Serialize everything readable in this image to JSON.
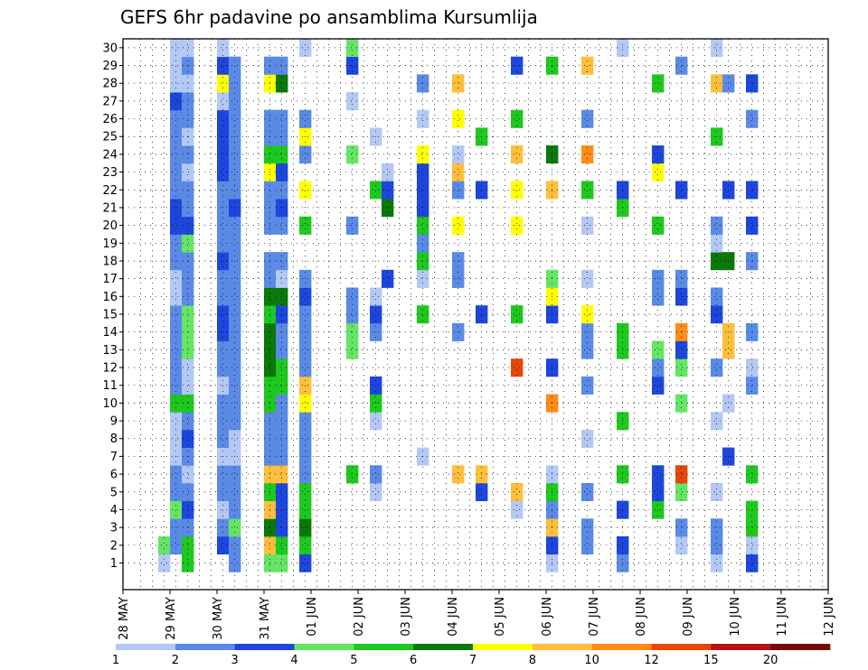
{
  "chart_data": {
    "type": "heatmap",
    "title": "GEFS 6hr padavine po ansamblima Kursumlija",
    "xlabel": "",
    "ylabel": "",
    "x_ticks": [
      "28 MAY",
      "29 MAY",
      "30 MAY",
      "31 MAY",
      "01 JUN",
      "02 JUN",
      "03 JUN",
      "04 JUN",
      "05 JUN",
      "06 JUN",
      "07 JUN",
      "08 JUN",
      "09 JUN",
      "10 JUN",
      "11 JUN",
      "12 JUN"
    ],
    "y_ticks": [
      1,
      2,
      3,
      4,
      5,
      6,
      7,
      8,
      9,
      10,
      11,
      12,
      13,
      14,
      15,
      16,
      17,
      18,
      19,
      20,
      21,
      22,
      23,
      24,
      25,
      26,
      27,
      28,
      29,
      30
    ],
    "xlim": [
      "28 MAY",
      "12 JUN"
    ],
    "ylim": [
      0,
      30
    ],
    "grid": true,
    "x_step": "6hr",
    "levels": [
      1,
      2,
      3,
      4,
      5,
      6,
      7,
      8,
      10,
      12,
      15,
      20
    ],
    "level_labels": [
      "1",
      "2",
      "3",
      "4",
      "5",
      "6",
      "7",
      "8",
      "10",
      "12",
      "15",
      "20"
    ],
    "colors": [
      "#b4c8f5",
      "#5a8ae6",
      "#1e46dc",
      "#64e664",
      "#1ec81e",
      "#0a780a",
      "#ffff00",
      "#ffbe3c",
      "#ff8c14",
      "#e6460a",
      "#b41414",
      "#780a0a"
    ],
    "cells": [
      [
        3,
        1,
        1
      ],
      [
        3,
        2,
        4
      ],
      [
        4,
        2,
        2
      ],
      [
        4,
        3,
        2
      ],
      [
        4,
        4,
        4
      ],
      [
        4,
        5,
        2
      ],
      [
        4,
        6,
        2
      ],
      [
        4,
        7,
        1
      ],
      [
        4,
        8,
        1
      ],
      [
        4,
        9,
        1
      ],
      [
        4,
        10,
        5
      ],
      [
        4,
        11,
        2
      ],
      [
        4,
        12,
        2
      ],
      [
        4,
        13,
        2
      ],
      [
        4,
        14,
        2
      ],
      [
        4,
        15,
        2
      ],
      [
        4,
        16,
        1
      ],
      [
        4,
        17,
        1
      ],
      [
        4,
        18,
        2
      ],
      [
        4,
        19,
        2
      ],
      [
        4,
        20,
        3
      ],
      [
        4,
        21,
        3
      ],
      [
        4,
        22,
        2
      ],
      [
        4,
        23,
        2
      ],
      [
        4,
        24,
        2
      ],
      [
        4,
        25,
        2
      ],
      [
        4,
        26,
        2
      ],
      [
        4,
        27,
        3
      ],
      [
        4,
        28,
        1
      ],
      [
        4,
        29,
        1
      ],
      [
        4,
        30,
        1
      ],
      [
        5,
        1,
        5
      ],
      [
        5,
        2,
        5
      ],
      [
        5,
        3,
        2
      ],
      [
        5,
        4,
        3
      ],
      [
        5,
        5,
        2
      ],
      [
        5,
        6,
        1
      ],
      [
        5,
        7,
        2
      ],
      [
        5,
        8,
        3
      ],
      [
        5,
        9,
        2
      ],
      [
        5,
        10,
        5
      ],
      [
        5,
        11,
        1
      ],
      [
        5,
        12,
        1
      ],
      [
        5,
        13,
        4
      ],
      [
        5,
        14,
        4
      ],
      [
        5,
        15,
        4
      ],
      [
        5,
        16,
        2
      ],
      [
        5,
        17,
        2
      ],
      [
        5,
        18,
        2
      ],
      [
        5,
        19,
        4
      ],
      [
        5,
        20,
        3
      ],
      [
        5,
        21,
        2
      ],
      [
        5,
        22,
        2
      ],
      [
        5,
        23,
        1
      ],
      [
        5,
        24,
        2
      ],
      [
        5,
        25,
        1
      ],
      [
        5,
        26,
        2
      ],
      [
        5,
        27,
        2
      ],
      [
        5,
        28,
        1
      ],
      [
        5,
        29,
        2
      ],
      [
        5,
        30,
        1
      ],
      [
        8,
        2,
        3
      ],
      [
        8,
        3,
        2
      ],
      [
        8,
        4,
        1
      ],
      [
        8,
        5,
        2
      ],
      [
        8,
        6,
        2
      ],
      [
        8,
        7,
        1
      ],
      [
        8,
        8,
        2
      ],
      [
        8,
        9,
        2
      ],
      [
        8,
        10,
        2
      ],
      [
        8,
        11,
        1
      ],
      [
        8,
        12,
        2
      ],
      [
        8,
        13,
        2
      ],
      [
        8,
        14,
        3
      ],
      [
        8,
        15,
        3
      ],
      [
        8,
        16,
        2
      ],
      [
        8,
        17,
        2
      ],
      [
        8,
        18,
        3
      ],
      [
        8,
        19,
        2
      ],
      [
        8,
        20,
        2
      ],
      [
        8,
        21,
        2
      ],
      [
        8,
        22,
        2
      ],
      [
        8,
        23,
        3
      ],
      [
        8,
        24,
        3
      ],
      [
        8,
        25,
        3
      ],
      [
        8,
        26,
        3
      ],
      [
        8,
        27,
        1
      ],
      [
        8,
        28,
        7
      ],
      [
        8,
        29,
        3
      ],
      [
        8,
        30,
        1
      ],
      [
        9,
        1,
        2
      ],
      [
        9,
        2,
        2
      ],
      [
        9,
        3,
        4
      ],
      [
        9,
        4,
        2
      ],
      [
        9,
        5,
        2
      ],
      [
        9,
        6,
        2
      ],
      [
        9,
        7,
        1
      ],
      [
        9,
        8,
        1
      ],
      [
        9,
        9,
        2
      ],
      [
        9,
        10,
        2
      ],
      [
        9,
        11,
        2
      ],
      [
        9,
        12,
        2
      ],
      [
        9,
        13,
        2
      ],
      [
        9,
        14,
        2
      ],
      [
        9,
        15,
        2
      ],
      [
        9,
        16,
        2
      ],
      [
        9,
        17,
        2
      ],
      [
        9,
        18,
        2
      ],
      [
        9,
        19,
        2
      ],
      [
        9,
        20,
        2
      ],
      [
        9,
        21,
        3
      ],
      [
        9,
        22,
        2
      ],
      [
        9,
        23,
        2
      ],
      [
        9,
        24,
        2
      ],
      [
        9,
        25,
        2
      ],
      [
        9,
        26,
        2
      ],
      [
        9,
        27,
        2
      ],
      [
        9,
        28,
        2
      ],
      [
        9,
        29,
        2
      ],
      [
        12,
        1,
        4
      ],
      [
        12,
        2,
        8
      ],
      [
        12,
        3,
        6
      ],
      [
        12,
        4,
        8
      ],
      [
        12,
        5,
        5
      ],
      [
        12,
        6,
        8
      ],
      [
        12,
        7,
        2
      ],
      [
        12,
        8,
        2
      ],
      [
        12,
        9,
        2
      ],
      [
        12,
        10,
        5
      ],
      [
        12,
        11,
        5
      ],
      [
        12,
        12,
        6
      ],
      [
        12,
        13,
        6
      ],
      [
        12,
        14,
        6
      ],
      [
        12,
        15,
        5
      ],
      [
        12,
        16,
        6
      ],
      [
        12,
        17,
        2
      ],
      [
        12,
        18,
        2
      ],
      [
        12,
        20,
        2
      ],
      [
        12,
        21,
        2
      ],
      [
        12,
        22,
        2
      ],
      [
        12,
        23,
        7
      ],
      [
        12,
        24,
        5
      ],
      [
        12,
        25,
        2
      ],
      [
        12,
        26,
        2
      ],
      [
        12,
        28,
        7
      ],
      [
        12,
        29,
        2
      ],
      [
        13,
        1,
        4
      ],
      [
        13,
        2,
        5
      ],
      [
        13,
        3,
        3
      ],
      [
        13,
        4,
        3
      ],
      [
        13,
        5,
        3
      ],
      [
        13,
        6,
        8
      ],
      [
        13,
        7,
        2
      ],
      [
        13,
        8,
        2
      ],
      [
        13,
        9,
        2
      ],
      [
        13,
        10,
        2
      ],
      [
        13,
        11,
        5
      ],
      [
        13,
        12,
        5
      ],
      [
        13,
        13,
        2
      ],
      [
        13,
        14,
        2
      ],
      [
        13,
        15,
        3
      ],
      [
        13,
        16,
        6
      ],
      [
        13,
        17,
        1
      ],
      [
        13,
        18,
        2
      ],
      [
        13,
        20,
        2
      ],
      [
        13,
        21,
        3
      ],
      [
        13,
        22,
        2
      ],
      [
        13,
        23,
        3
      ],
      [
        13,
        24,
        5
      ],
      [
        13,
        25,
        2
      ],
      [
        13,
        26,
        2
      ],
      [
        13,
        28,
        6
      ],
      [
        13,
        29,
        2
      ],
      [
        15,
        1,
        3
      ],
      [
        15,
        2,
        5
      ],
      [
        15,
        3,
        6
      ],
      [
        15,
        4,
        5
      ],
      [
        15,
        5,
        5
      ],
      [
        15,
        6,
        2
      ],
      [
        15,
        7,
        2
      ],
      [
        15,
        8,
        2
      ],
      [
        15,
        9,
        2
      ],
      [
        15,
        10,
        7
      ],
      [
        15,
        11,
        8
      ],
      [
        15,
        12,
        2
      ],
      [
        15,
        13,
        2
      ],
      [
        15,
        14,
        2
      ],
      [
        15,
        15,
        2
      ],
      [
        15,
        16,
        3
      ],
      [
        15,
        17,
        2
      ],
      [
        15,
        20,
        5
      ],
      [
        15,
        22,
        7
      ],
      [
        15,
        24,
        2
      ],
      [
        15,
        25,
        7
      ],
      [
        15,
        26,
        2
      ],
      [
        15,
        30,
        1
      ],
      [
        19,
        6,
        5
      ],
      [
        19,
        13,
        4
      ],
      [
        19,
        14,
        4
      ],
      [
        19,
        15,
        2
      ],
      [
        19,
        16,
        2
      ],
      [
        19,
        20,
        2
      ],
      [
        19,
        24,
        4
      ],
      [
        19,
        27,
        1
      ],
      [
        19,
        29,
        3
      ],
      [
        19,
        30,
        4
      ],
      [
        21,
        5,
        1
      ],
      [
        21,
        6,
        2
      ],
      [
        21,
        9,
        1
      ],
      [
        21,
        10,
        5
      ],
      [
        21,
        11,
        3
      ],
      [
        21,
        14,
        2
      ],
      [
        21,
        15,
        3
      ],
      [
        21,
        16,
        1
      ],
      [
        21,
        22,
        5
      ],
      [
        21,
        25,
        1
      ],
      [
        22,
        17,
        3
      ],
      [
        22,
        21,
        6
      ],
      [
        22,
        22,
        3
      ],
      [
        22,
        23,
        1
      ],
      [
        25,
        7,
        1
      ],
      [
        25,
        15,
        5
      ],
      [
        25,
        17,
        1
      ],
      [
        25,
        18,
        5
      ],
      [
        25,
        19,
        2
      ],
      [
        25,
        20,
        5
      ],
      [
        25,
        21,
        3
      ],
      [
        25,
        22,
        3
      ],
      [
        25,
        23,
        3
      ],
      [
        25,
        24,
        7
      ],
      [
        25,
        26,
        1
      ],
      [
        25,
        28,
        2
      ],
      [
        28,
        6,
        8
      ],
      [
        28,
        14,
        2
      ],
      [
        28,
        20,
        7
      ],
      [
        28,
        24,
        1
      ],
      [
        28,
        28,
        8
      ],
      [
        28,
        22,
        2
      ],
      [
        28,
        23,
        8
      ],
      [
        28,
        26,
        7
      ],
      [
        28,
        18,
        2
      ],
      [
        28,
        17,
        2
      ],
      [
        30,
        5,
        3
      ],
      [
        30,
        6,
        8
      ],
      [
        30,
        15,
        3
      ],
      [
        30,
        22,
        3
      ],
      [
        30,
        25,
        5
      ],
      [
        33,
        4,
        1
      ],
      [
        33,
        5,
        8
      ],
      [
        33,
        12,
        10
      ],
      [
        33,
        15,
        5
      ],
      [
        33,
        20,
        7
      ],
      [
        33,
        22,
        7
      ],
      [
        33,
        24,
        8
      ],
      [
        33,
        26,
        5
      ],
      [
        33,
        29,
        3
      ],
      [
        36,
        1,
        1
      ],
      [
        36,
        2,
        3
      ],
      [
        36,
        3,
        8
      ],
      [
        36,
        4,
        2
      ],
      [
        36,
        5,
        5
      ],
      [
        36,
        6,
        1
      ],
      [
        36,
        10,
        9
      ],
      [
        36,
        12,
        3
      ],
      [
        36,
        15,
        3
      ],
      [
        36,
        16,
        7
      ],
      [
        36,
        17,
        4
      ],
      [
        36,
        22,
        8
      ],
      [
        36,
        24,
        6
      ],
      [
        36,
        29,
        5
      ],
      [
        39,
        2,
        2
      ],
      [
        39,
        3,
        2
      ],
      [
        39,
        5,
        2
      ],
      [
        39,
        8,
        1
      ],
      [
        39,
        11,
        2
      ],
      [
        39,
        13,
        2
      ],
      [
        39,
        14,
        2
      ],
      [
        39,
        15,
        7
      ],
      [
        39,
        17,
        1
      ],
      [
        39,
        20,
        1
      ],
      [
        39,
        22,
        5
      ],
      [
        39,
        24,
        9
      ],
      [
        39,
        26,
        2
      ],
      [
        39,
        29,
        8
      ],
      [
        42,
        1,
        2
      ],
      [
        42,
        2,
        3
      ],
      [
        42,
        4,
        3
      ],
      [
        42,
        6,
        5
      ],
      [
        42,
        9,
        5
      ],
      [
        42,
        13,
        5
      ],
      [
        42,
        14,
        5
      ],
      [
        42,
        21,
        5
      ],
      [
        42,
        22,
        3
      ],
      [
        42,
        30,
        1
      ],
      [
        45,
        4,
        5
      ],
      [
        45,
        5,
        3
      ],
      [
        45,
        6,
        3
      ],
      [
        45,
        11,
        3
      ],
      [
        45,
        12,
        2
      ],
      [
        45,
        13,
        4
      ],
      [
        45,
        16,
        2
      ],
      [
        45,
        17,
        2
      ],
      [
        45,
        20,
        5
      ],
      [
        45,
        23,
        7
      ],
      [
        45,
        24,
        3
      ],
      [
        45,
        28,
        5
      ],
      [
        47,
        2,
        1
      ],
      [
        47,
        3,
        2
      ],
      [
        47,
        5,
        4
      ],
      [
        47,
        6,
        10
      ],
      [
        47,
        10,
        4
      ],
      [
        47,
        12,
        4
      ],
      [
        47,
        13,
        3
      ],
      [
        47,
        14,
        9
      ],
      [
        47,
        16,
        3
      ],
      [
        47,
        17,
        2
      ],
      [
        47,
        22,
        3
      ],
      [
        47,
        29,
        2
      ],
      [
        50,
        1,
        1
      ],
      [
        50,
        2,
        2
      ],
      [
        50,
        3,
        2
      ],
      [
        50,
        5,
        1
      ],
      [
        50,
        9,
        1
      ],
      [
        50,
        12,
        2
      ],
      [
        50,
        15,
        3
      ],
      [
        50,
        16,
        2
      ],
      [
        50,
        18,
        6
      ],
      [
        50,
        19,
        1
      ],
      [
        50,
        20,
        2
      ],
      [
        50,
        25,
        5
      ],
      [
        50,
        28,
        8
      ],
      [
        50,
        30,
        1
      ],
      [
        51,
        7,
        3
      ],
      [
        51,
        10,
        1
      ],
      [
        51,
        13,
        8
      ],
      [
        51,
        14,
        8
      ],
      [
        51,
        18,
        6
      ],
      [
        51,
        22,
        3
      ],
      [
        51,
        28,
        2
      ],
      [
        53,
        1,
        3
      ],
      [
        53,
        2,
        1
      ],
      [
        53,
        3,
        5
      ],
      [
        53,
        4,
        5
      ],
      [
        53,
        6,
        5
      ],
      [
        53,
        11,
        2
      ],
      [
        53,
        12,
        1
      ],
      [
        53,
        14,
        2
      ],
      [
        53,
        18,
        2
      ],
      [
        53,
        20,
        3
      ],
      [
        53,
        22,
        3
      ],
      [
        53,
        26,
        2
      ],
      [
        53,
        28,
        3
      ]
    ]
  }
}
